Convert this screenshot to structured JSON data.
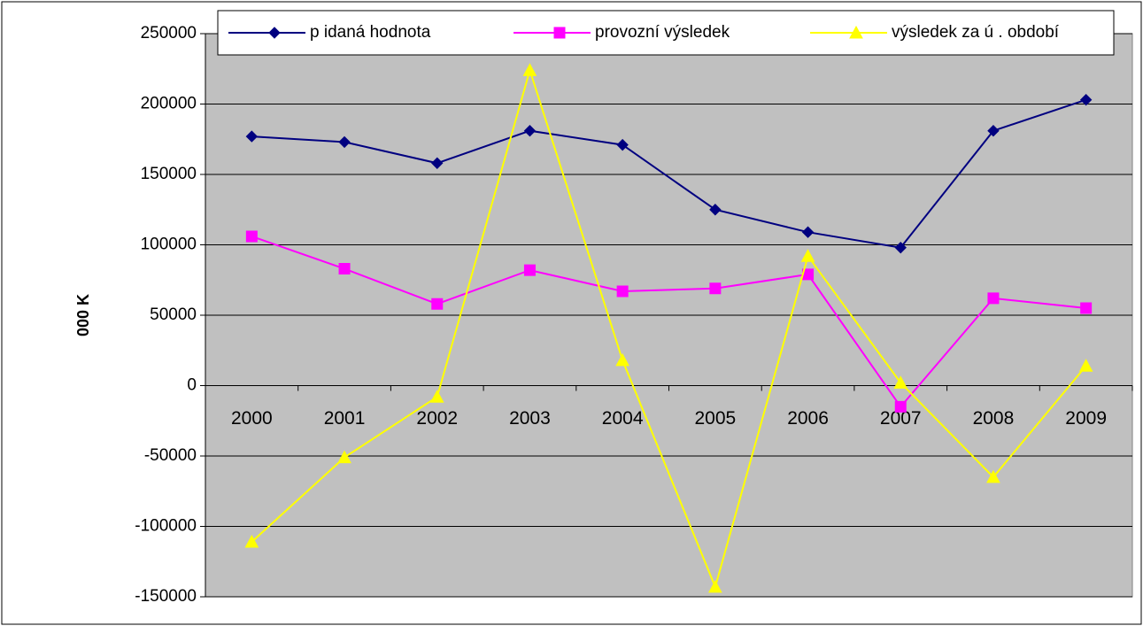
{
  "chart_data": {
    "type": "line",
    "y_label": "000 K",
    "categories": [
      "2000",
      "2001",
      "2002",
      "2003",
      "2004",
      "2005",
      "2006",
      "2007",
      "2008",
      "2009"
    ],
    "series": [
      {
        "name": "p idaná hodnota",
        "color": "#000080",
        "marker": "diamond",
        "values": [
          177000,
          173000,
          158000,
          181000,
          171000,
          125000,
          109000,
          98000,
          181000,
          203000
        ]
      },
      {
        "name": "provozní výsledek",
        "color": "#ff00ff",
        "marker": "square",
        "values": [
          106000,
          83000,
          58000,
          82000,
          67000,
          69000,
          79000,
          -15000,
          62000,
          55000
        ]
      },
      {
        "name": "výsledek za ú . období",
        "color": "#ffff00",
        "marker": "triangle",
        "values": [
          -111000,
          -51000,
          -8000,
          224000,
          18000,
          -143000,
          92000,
          2000,
          -65000,
          14000
        ]
      }
    ],
    "ylim": [
      -150000,
      250000
    ],
    "yticks": [
      -150000,
      -100000,
      -50000,
      0,
      50000,
      100000,
      150000,
      200000,
      250000
    ],
    "grid": true,
    "legend": "top"
  }
}
